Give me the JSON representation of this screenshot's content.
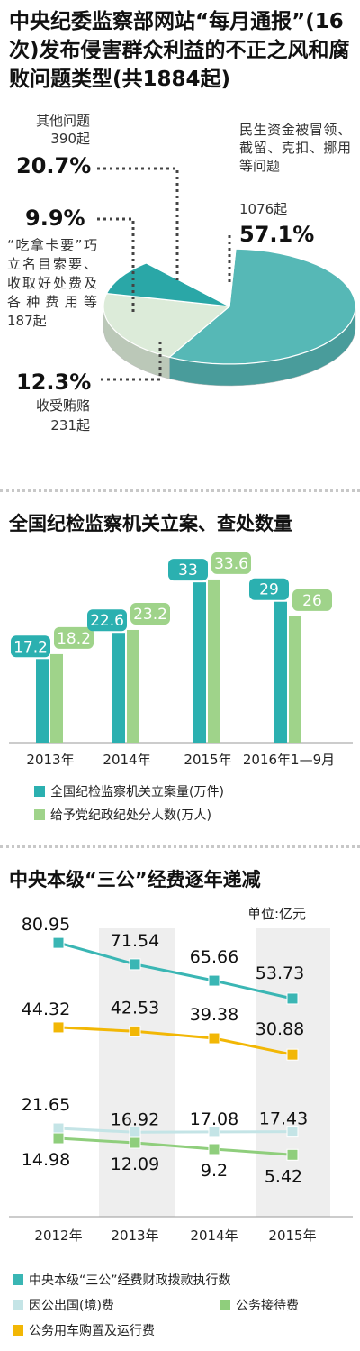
{
  "section1": {
    "title": "中央纪委监察部网站“每月通报”(16次)发布侵害群众利益的不正之风和腐败问题类型(共1884起)",
    "slices": [
      {
        "label": "民生资金被冒领、截留、克扣、挪用等问题",
        "count": "1076起",
        "pct": "57.1%",
        "value": 1076,
        "color": "#56b8b6"
      },
      {
        "label": "其他问题",
        "count": "390起",
        "pct": "20.7%",
        "value": 390,
        "color": "#dcebd9"
      },
      {
        "label": "“吃拿卡要”巧立名目索要、收取好处费及各种费用等",
        "count": "187起",
        "pct": "9.9%",
        "value": 187,
        "color": "#2aa7a7"
      },
      {
        "label": "收受贿赂",
        "count": "231起",
        "pct": "12.3%",
        "value": 231,
        "color": "#ffffff"
      }
    ]
  },
  "chart_data": [
    {
      "type": "pie",
      "title": "中央纪委监察部网站“每月通报”(16次)发布侵害群众利益的不正之风和腐败问题类型(共1884起)",
      "categories": [
        "民生资金被冒领、截留、克扣、挪用等问题",
        "其他问题",
        "“吃拿卡要”巧立名目索要、收取好处费及各种费用等",
        "收受贿赂"
      ],
      "values": [
        1076,
        390,
        187,
        231
      ],
      "percentages": [
        57.1,
        20.7,
        9.9,
        12.3
      ]
    },
    {
      "type": "bar",
      "title": "全国纪检监察机关立案、查处数量",
      "categories": [
        "2013年",
        "2014年",
        "2015年",
        "2016年1—9月"
      ],
      "series": [
        {
          "name": "全国纪检监察机关立案量(万件)",
          "values": [
            17.2,
            22.6,
            33,
            29
          ],
          "color": "#2bb0b0"
        },
        {
          "name": "给予党纪政纪处分人数(万人)",
          "values": [
            18.2,
            23.2,
            33.6,
            26
          ],
          "color": "#9fd38a"
        }
      ],
      "ylim": [
        0,
        36
      ]
    },
    {
      "type": "line",
      "title": "中央本级“三公”经费逐年递减",
      "unit": "单位:亿元",
      "categories": [
        "2012年",
        "2013年",
        "2014年",
        "2015年"
      ],
      "series": [
        {
          "name": "中央本级“三公”经费财政拨款执行数",
          "values": [
            80.95,
            71.54,
            65.66,
            53.73
          ],
          "color": "#3ab6b4"
        },
        {
          "name": "公务用车购置及运行费",
          "values": [
            44.32,
            42.53,
            39.38,
            30.88
          ],
          "color": "#f2b705"
        },
        {
          "name": "因公出国(境)费",
          "values": [
            21.65,
            16.92,
            17.08,
            17.43
          ],
          "color": "#c4e4e6"
        },
        {
          "name": "公务接待费",
          "values": [
            14.98,
            12.09,
            9.2,
            5.42
          ],
          "color": "#8fce7c"
        }
      ]
    }
  ],
  "section2": {
    "title": "全国纪检监察机关立案、查处数量"
  },
  "section3": {
    "title": "中央本级“三公”经费逐年递减",
    "unit": "单位:亿元",
    "legend": {
      "total": "中央本级“三公”经费财政拨款执行数",
      "abroad": "因公出国(境)费",
      "reception": "公务接待费",
      "cars": "公务用车购置及运行费"
    }
  }
}
